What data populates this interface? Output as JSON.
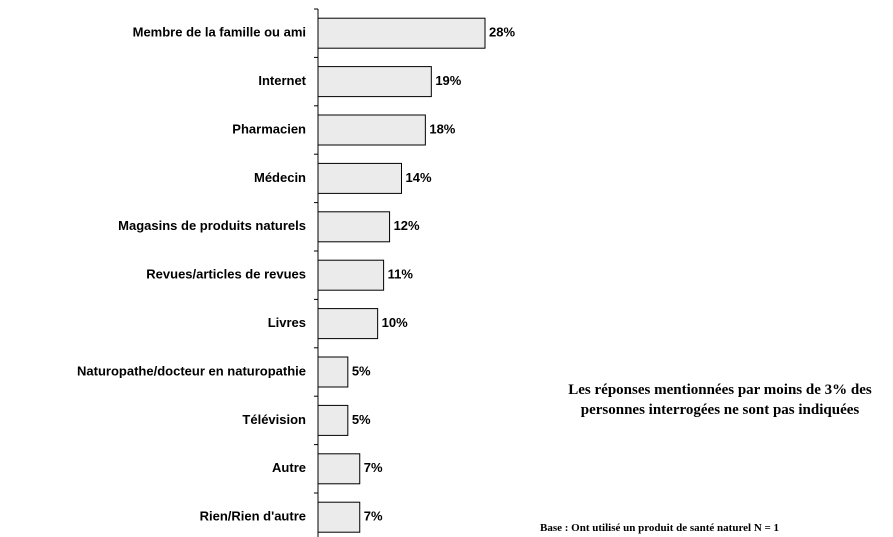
{
  "chart_data": {
    "type": "bar",
    "orientation": "horizontal",
    "categories": [
      "Membre de la famille ou ami",
      "Internet",
      "Pharmacien",
      "Médecin",
      "Magasins de produits naturels",
      "Revues/articles de revues",
      "Livres",
      "Naturopathe/docteur en naturopathie",
      "Télévision",
      "Autre",
      "Rien/Rien d'autre"
    ],
    "values": [
      28,
      19,
      18,
      14,
      12,
      11,
      10,
      5,
      5,
      7,
      7
    ],
    "value_labels": [
      "28%",
      "19%",
      "18%",
      "14%",
      "12%",
      "11%",
      "10%",
      "5%",
      "5%",
      "7%",
      "7%"
    ],
    "color": "#ebebeb",
    "annotations": [
      "Les réponses mentionnées par moins de 3% des personnes interrogées ne sont pas indiquées",
      "Base : Ont utilisé un produit de santé naturel  N = 1"
    ]
  }
}
